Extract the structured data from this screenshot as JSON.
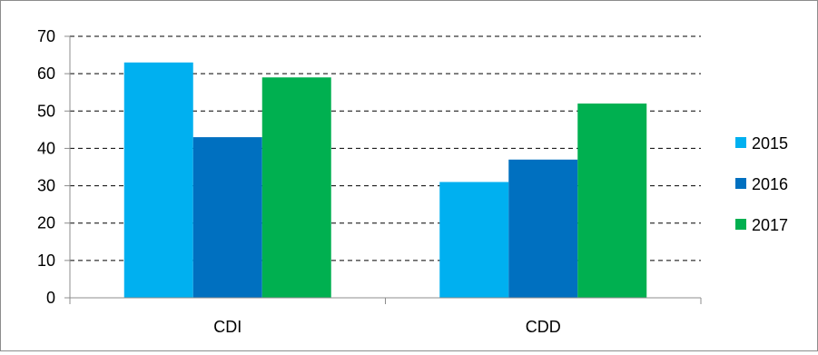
{
  "chart_data": {
    "type": "bar",
    "title": "",
    "xlabel": "",
    "ylabel": "",
    "categories": [
      "CDI",
      "CDD"
    ],
    "series": [
      {
        "name": "2015",
        "color": "#00b0f0",
        "values": [
          63,
          31
        ]
      },
      {
        "name": "2016",
        "color": "#0070c0",
        "values": [
          43,
          37
        ]
      },
      {
        "name": "2017",
        "color": "#00b050",
        "values": [
          59,
          52
        ]
      }
    ],
    "ylim": [
      0,
      70
    ],
    "yticks": [
      "0",
      "10",
      "20",
      "30",
      "40",
      "50",
      "60",
      "70"
    ],
    "grid": "horizontal dashed",
    "legend_position": "right"
  }
}
